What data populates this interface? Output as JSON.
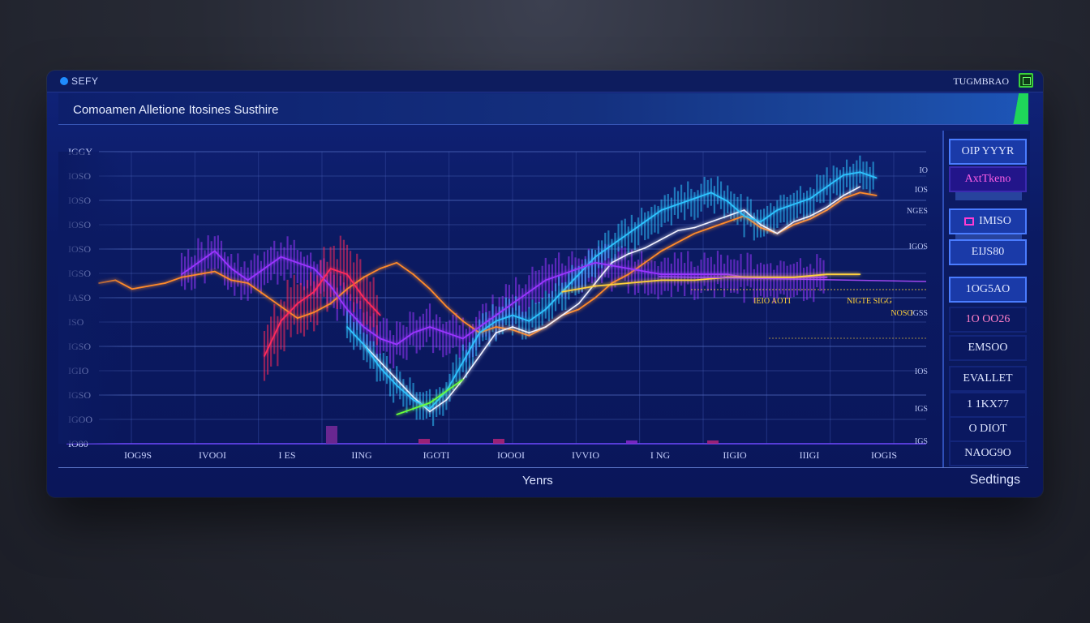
{
  "window": {
    "app_name": "SEFY",
    "right_label": "TUGMBRAO"
  },
  "title": "Comoamen Alletione Itosines Susthire",
  "xlabel": "Yenrs",
  "settings_label": "Sedtings",
  "sidebar": {
    "buttons": [
      {
        "label": "OIP YYYR",
        "style": "active"
      },
      {
        "label": "AxtTkeno",
        "style": "magenta"
      },
      {
        "label": "IMISO",
        "style": "active-square"
      },
      {
        "label": "EIJS80",
        "style": "active"
      },
      {
        "label": "1OG5AO",
        "style": "active"
      },
      {
        "label": "1O OO26",
        "style": "pink"
      },
      {
        "label": "EMSOO",
        "style": "plain"
      },
      {
        "label": "EVALLET",
        "style": "plain"
      },
      {
        "label": "1 1KX77",
        "style": "plain"
      },
      {
        "label": "O DIOT",
        "style": "plain"
      },
      {
        "label": "NAOG9O",
        "style": "plain"
      }
    ]
  },
  "colors": {
    "background": "#0b1a62",
    "grid": "#3b53a8",
    "series_cyan": "#2fc4ff",
    "series_orange": "#ff8a2a",
    "series_purple": "#9a35ff",
    "series_red": "#ff2a5c",
    "series_white": "#f2f2ff",
    "series_yellow": "#ffd13a",
    "series_green": "#6bff3a",
    "accent_green": "#1fd65a"
  },
  "chart_data": {
    "type": "line",
    "title": "Comoamen Alletione Itosines Susthire",
    "xlabel": "Yenrs",
    "ylabel": "",
    "x_tick_labels": [
      "IOG9S",
      "IVOOI",
      "I ES",
      "IING",
      "IGOTI",
      "IOOOI",
      "IVVIO",
      "I NG",
      "IIGIO",
      "IIIGI",
      "IOGIS"
    ],
    "y_tick_labels": [
      "IGGY",
      "IOSO",
      "IOSO",
      "IOSO",
      "IOSO",
      "IGSO",
      "IASO",
      "ISO",
      "IGSO",
      "IGIO",
      "IGSO",
      "IGOO",
      "IO80"
    ],
    "right_tick_labels": [
      "IO",
      "IOS",
      "NGES",
      "IGOS",
      "IGSS",
      "IOS",
      "IGS",
      "IGS"
    ],
    "annotations": [
      "IEIO AOTI",
      "NIGTE SIGG",
      "NOSO"
    ],
    "ylim": [
      0,
      100
    ],
    "grid": true,
    "series": [
      {
        "color": "#ff8a2a",
        "x": [
          0,
          2,
          4,
          6,
          8,
          10,
          12,
          14,
          16,
          18,
          20,
          22,
          24,
          26,
          28,
          30,
          32,
          34,
          36,
          38,
          40,
          42,
          44,
          46,
          48,
          50,
          52,
          54,
          56,
          58,
          60,
          62,
          64,
          66,
          68,
          70,
          72,
          74,
          76,
          78,
          80,
          82,
          84,
          86,
          88,
          90,
          92,
          94
        ],
        "y": [
          55,
          56,
          53,
          54,
          55,
          57,
          58,
          59,
          56,
          55,
          51,
          47,
          43,
          45,
          48,
          53,
          57,
          60,
          62,
          58,
          53,
          47,
          42,
          38,
          40,
          39,
          37,
          40,
          44,
          46,
          50,
          55,
          58,
          62,
          66,
          69,
          72,
          74,
          76,
          78,
          74,
          72,
          75,
          77,
          80,
          84,
          86,
          85
        ]
      },
      {
        "color": "#f2f2ff",
        "x": [
          32,
          34,
          36,
          38,
          40,
          42,
          44,
          46,
          48,
          50,
          52,
          54,
          56,
          58,
          60,
          62,
          64,
          66,
          68,
          70,
          72,
          74,
          76,
          78,
          80,
          82,
          84,
          86,
          88,
          90,
          92
        ],
        "y": [
          34,
          28,
          22,
          16,
          11,
          15,
          22,
          30,
          38,
          40,
          38,
          40,
          44,
          48,
          55,
          62,
          65,
          67,
          70,
          73,
          74,
          76,
          78,
          80,
          75,
          72,
          76,
          78,
          81,
          85,
          88
        ]
      },
      {
        "color": "#2fc4ff",
        "x": [
          30,
          32,
          34,
          36,
          38,
          40,
          42,
          44,
          46,
          48,
          50,
          52,
          54,
          56,
          58,
          60,
          62,
          64,
          66,
          68,
          70,
          72,
          74,
          76,
          78,
          80,
          82,
          84,
          86,
          88,
          90,
          92,
          94
        ],
        "y": [
          40,
          34,
          26,
          20,
          15,
          12,
          18,
          28,
          38,
          42,
          44,
          42,
          46,
          52,
          58,
          64,
          68,
          72,
          76,
          80,
          82,
          84,
          86,
          83,
          78,
          76,
          80,
          82,
          84,
          88,
          92,
          93,
          91
        ]
      },
      {
        "color": "#9a35ff",
        "x": [
          10,
          12,
          14,
          16,
          18,
          20,
          22,
          24,
          26,
          28,
          30,
          32,
          34,
          36,
          38,
          40,
          42,
          44,
          46,
          48,
          50,
          52,
          54,
          56,
          58,
          60,
          62,
          64,
          66,
          68,
          70,
          72,
          74,
          76,
          78,
          80,
          82,
          84,
          86,
          88
        ],
        "y": [
          58,
          62,
          66,
          60,
          56,
          60,
          64,
          62,
          60,
          54,
          46,
          40,
          36,
          34,
          38,
          40,
          38,
          36,
          40,
          44,
          48,
          52,
          56,
          58,
          60,
          62,
          61,
          60,
          59,
          58,
          58,
          58,
          58,
          58,
          57,
          57,
          57,
          57,
          57,
          57
        ]
      },
      {
        "color": "#ff2a5c",
        "x": [
          20,
          22,
          24,
          26,
          28,
          30,
          32,
          34
        ],
        "y": [
          30,
          42,
          48,
          52,
          60,
          58,
          50,
          44
        ]
      },
      {
        "color": "#ffd13a",
        "x": [
          56,
          60,
          64,
          68,
          72,
          76,
          80,
          84,
          88,
          92
        ],
        "y": [
          52,
          54,
          55,
          56,
          56,
          57,
          57,
          57,
          58,
          58
        ]
      },
      {
        "color": "#6bff3a",
        "x": [
          36,
          38,
          40,
          42,
          44
        ],
        "y": [
          10,
          12,
          14,
          18,
          22
        ]
      }
    ]
  }
}
